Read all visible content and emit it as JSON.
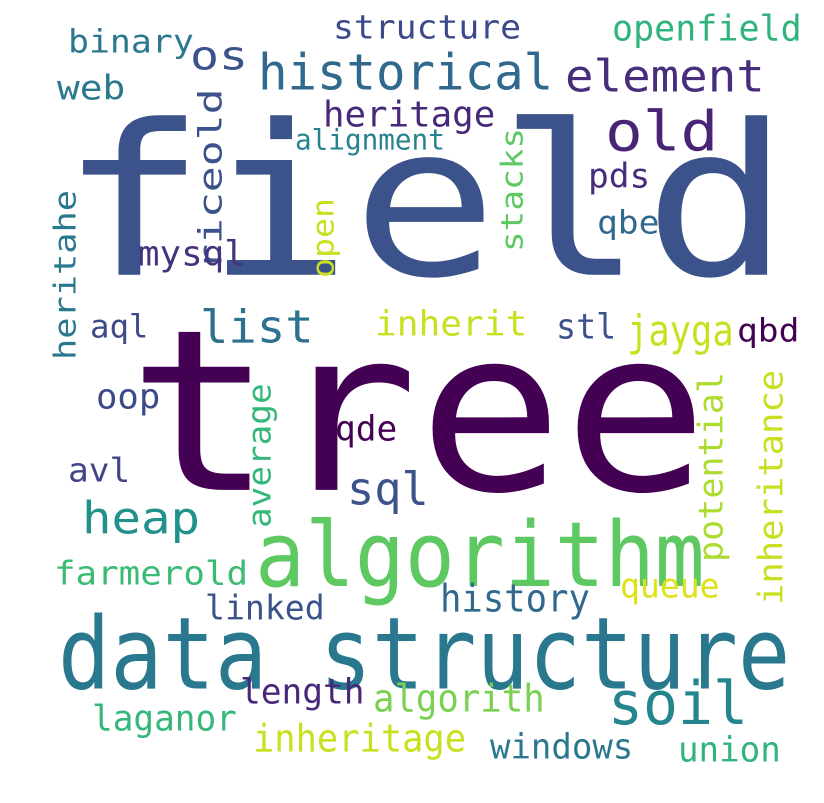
{
  "word_cloud": {
    "words": [
      {
        "text": "field",
        "color": "#3b528b"
      },
      {
        "text": "tree",
        "color": "#440154"
      },
      {
        "text": "data structure",
        "color": "#2a788e"
      },
      {
        "text": "algorithm",
        "color": "#5ec962"
      },
      {
        "text": "historical",
        "color": "#31688e"
      },
      {
        "text": "element",
        "color": "#472d7b"
      },
      {
        "text": "old",
        "color": "#482475"
      },
      {
        "text": "os",
        "color": "#3b528b"
      },
      {
        "text": "structure",
        "color": "#3e4989"
      },
      {
        "text": "openfield",
        "color": "#2fb47c"
      },
      {
        "text": "binary",
        "color": "#2a788e"
      },
      {
        "text": "web",
        "color": "#2a788e"
      },
      {
        "text": "heritage",
        "color": "#482878"
      },
      {
        "text": "alignment",
        "color": "#26828e"
      },
      {
        "text": "riceold",
        "color": "#3b528b"
      },
      {
        "text": "stacks",
        "color": "#5ec962"
      },
      {
        "text": "pds",
        "color": "#472d7b"
      },
      {
        "text": "qbe",
        "color": "#31688e"
      },
      {
        "text": "mysql",
        "color": "#46337e"
      },
      {
        "text": "open",
        "color": "#c8e020"
      },
      {
        "text": "heritahe",
        "color": "#2a788e"
      },
      {
        "text": "list",
        "color": "#2c728e"
      },
      {
        "text": "inherit",
        "color": "#c8e020"
      },
      {
        "text": "aql",
        "color": "#3e4989"
      },
      {
        "text": "stl",
        "color": "#3b528b"
      },
      {
        "text": "jayga",
        "color": "#c8e020"
      },
      {
        "text": "qbd",
        "color": "#440154"
      },
      {
        "text": "oop",
        "color": "#3e4989"
      },
      {
        "text": "potential",
        "color": "#addc30"
      },
      {
        "text": "inheritance",
        "color": "#c8e020"
      },
      {
        "text": "qde",
        "color": "#440154"
      },
      {
        "text": "average",
        "color": "#35b779"
      },
      {
        "text": "avl",
        "color": "#414487"
      },
      {
        "text": "sql",
        "color": "#3b528b"
      },
      {
        "text": "heap",
        "color": "#21918c"
      },
      {
        "text": "farmerold",
        "color": "#3cbb75"
      },
      {
        "text": "queue",
        "color": "#dde318"
      },
      {
        "text": "linked",
        "color": "#3b528b"
      },
      {
        "text": "history",
        "color": "#31688e"
      },
      {
        "text": "soil",
        "color": "#25858e"
      },
      {
        "text": "length",
        "color": "#482878"
      },
      {
        "text": "algorith",
        "color": "#7ad151"
      },
      {
        "text": "laganor",
        "color": "#35b779"
      },
      {
        "text": "inheritage",
        "color": "#c8e020"
      },
      {
        "text": "windows",
        "color": "#2a788e"
      },
      {
        "text": "union",
        "color": "#2fb47c"
      }
    ]
  }
}
